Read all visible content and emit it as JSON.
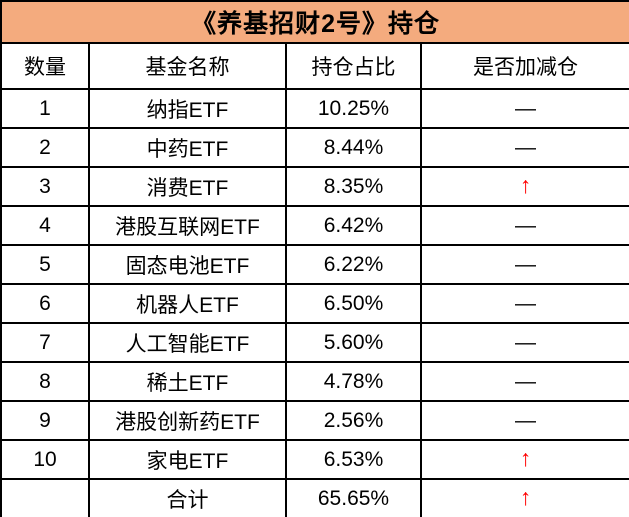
{
  "title": "《养基招财2号》持仓",
  "colors": {
    "title_bg": "#F4AB7E",
    "title_text": "#000000",
    "up_arrow": "#FF0000",
    "border": "#000000"
  },
  "icons": {
    "up_arrow_glyph": "↑",
    "no_change_glyph": "—"
  },
  "table": {
    "columns": [
      "数量",
      "基金名称",
      "持仓占比",
      "是否加减仓"
    ],
    "rows": [
      {
        "num": "1",
        "name": "纳指ETF",
        "pct": "10.25%",
        "action": "—"
      },
      {
        "num": "2",
        "name": "中药ETF",
        "pct": "8.44%",
        "action": "—"
      },
      {
        "num": "3",
        "name": "消费ETF",
        "pct": "8.35%",
        "action": "↑"
      },
      {
        "num": "4",
        "name": "港股互联网ETF",
        "pct": "6.42%",
        "action": "—"
      },
      {
        "num": "5",
        "name": "固态电池ETF",
        "pct": "6.22%",
        "action": "—"
      },
      {
        "num": "6",
        "name": "机器人ETF",
        "pct": "6.50%",
        "action": "—"
      },
      {
        "num": "7",
        "name": "人工智能ETF",
        "pct": "5.60%",
        "action": "—"
      },
      {
        "num": "8",
        "name": "稀土ETF",
        "pct": "4.78%",
        "action": "—"
      },
      {
        "num": "9",
        "name": "港股创新药ETF",
        "pct": "2.56%",
        "action": "—"
      },
      {
        "num": "10",
        "name": "家电ETF",
        "pct": "6.53%",
        "action": "↑"
      }
    ],
    "total_row": {
      "num": "",
      "name": "合计",
      "pct": "65.65%",
      "action": "↑"
    }
  }
}
